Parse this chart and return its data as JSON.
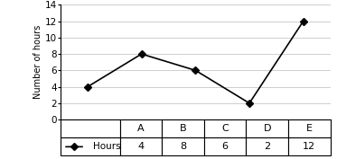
{
  "categories": [
    "A",
    "B",
    "C",
    "D",
    "E"
  ],
  "values": [
    4,
    8,
    6,
    2,
    12
  ],
  "ylabel": "Number of hours",
  "ylim": [
    0,
    14
  ],
  "yticks": [
    0,
    2,
    4,
    6,
    8,
    10,
    12,
    14
  ],
  "legend_label": "Hours",
  "line_color": "#000000",
  "marker": "D",
  "background_color": "#ffffff",
  "table_values": [
    "4",
    "8",
    "6",
    "2",
    "12"
  ]
}
